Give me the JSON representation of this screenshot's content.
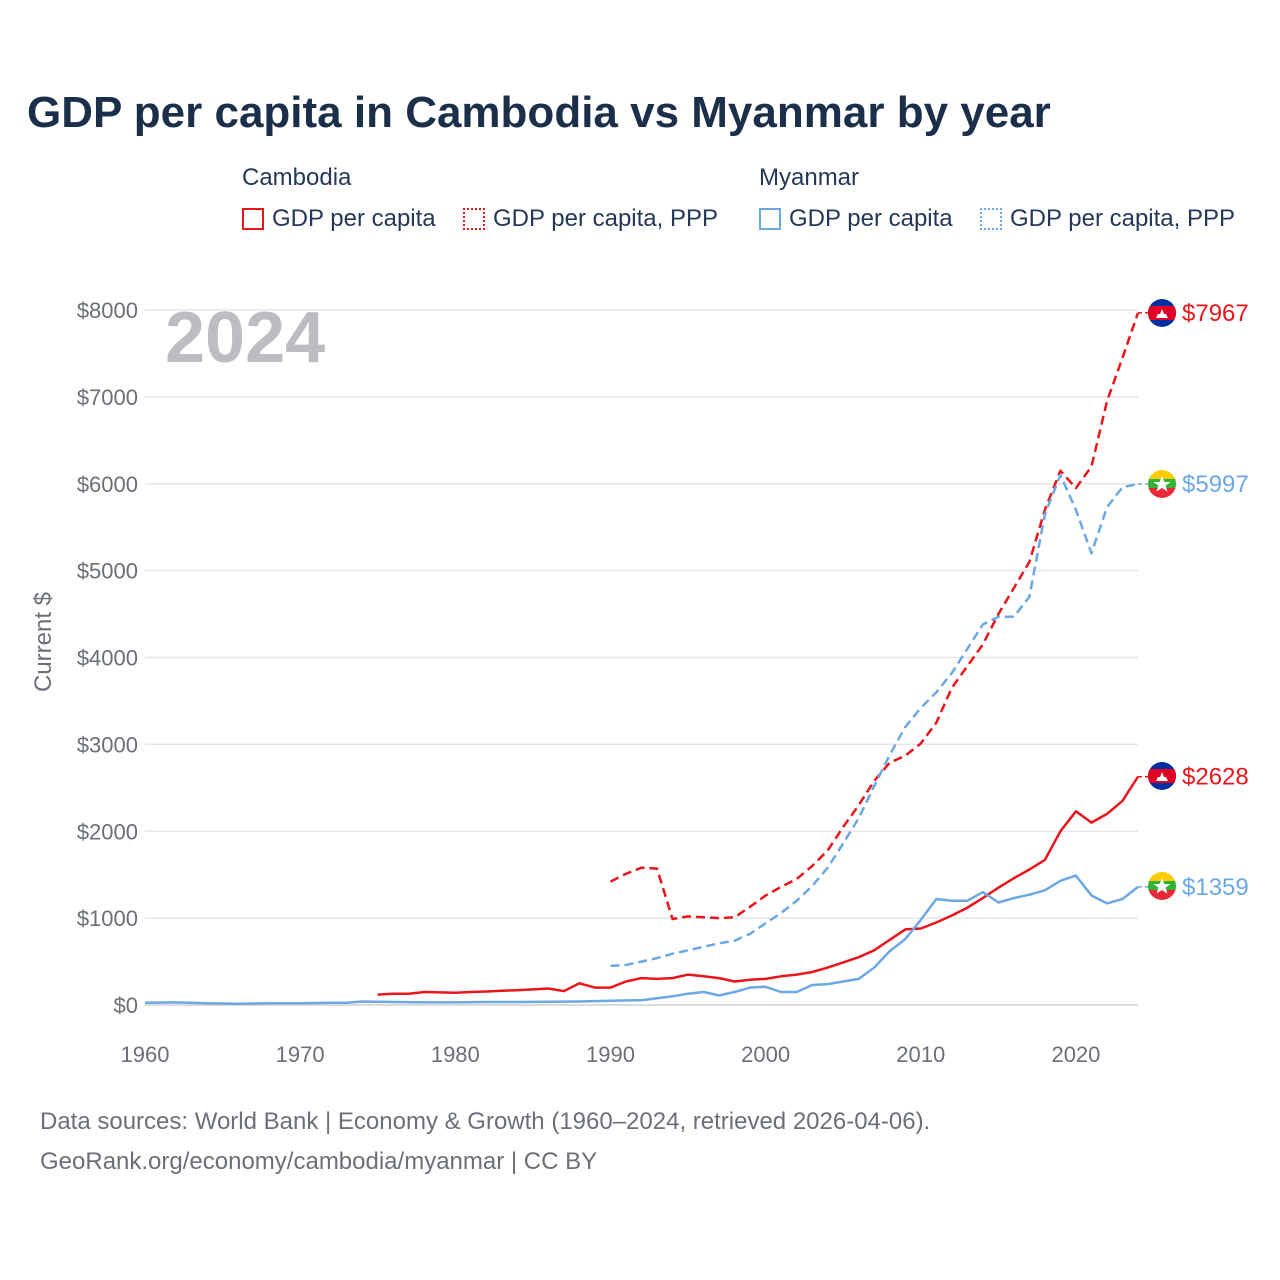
{
  "title": "GDP per capita in Cambodia vs Myanmar by year",
  "legend": {
    "cambodia_title": "Cambodia",
    "myanmar_title": "Myanmar",
    "items": [
      {
        "label": "GDP per capita"
      },
      {
        "label": "GDP per capita, PPP"
      },
      {
        "label": "GDP per capita"
      },
      {
        "label": "GDP per capita, PPP"
      }
    ]
  },
  "colors": {
    "cambodia": "#e8161b",
    "myanmar": "#6ba8e4",
    "grid": "#e6e6e6",
    "axis_text": "#6b6f78",
    "title": "#1b2f4b"
  },
  "footer": {
    "line1": "Data sources: World Bank | Economy & Growth (1960–2024, retrieved 2026-04-06).",
    "line2": "GeoRank.org/economy/cambodia/myanmar | CC BY"
  },
  "chart_data": {
    "type": "line",
    "year_label": "2024",
    "ylabel": "Current $",
    "xlim": [
      1960,
      2024
    ],
    "ylim": [
      0,
      8000
    ],
    "x_ticks": [
      "1960",
      "1970",
      "1980",
      "1990",
      "2000",
      "2010",
      "2020"
    ],
    "y_ticks": [
      "$0",
      "$1000",
      "$2000",
      "$3000",
      "$4000",
      "$5000",
      "$6000",
      "$7000",
      "$8000"
    ],
    "series": [
      {
        "name": "Cambodia GDP per capita",
        "country": "cambodia",
        "style": "solid",
        "end_label": "$2628",
        "points": [
          [
            1975,
            120
          ],
          [
            1976,
            130
          ],
          [
            1977,
            130
          ],
          [
            1978,
            150
          ],
          [
            1979,
            145
          ],
          [
            1980,
            140
          ],
          [
            1981,
            150
          ],
          [
            1982,
            155
          ],
          [
            1983,
            165
          ],
          [
            1984,
            170
          ],
          [
            1985,
            180
          ],
          [
            1986,
            190
          ],
          [
            1987,
            160
          ],
          [
            1988,
            250
          ],
          [
            1989,
            200
          ],
          [
            1990,
            200
          ],
          [
            1991,
            270
          ],
          [
            1992,
            310
          ],
          [
            1993,
            300
          ],
          [
            1994,
            310
          ],
          [
            1995,
            350
          ],
          [
            1996,
            330
          ],
          [
            1997,
            310
          ],
          [
            1998,
            270
          ],
          [
            1999,
            290
          ],
          [
            2000,
            300
          ],
          [
            2001,
            330
          ],
          [
            2002,
            350
          ],
          [
            2003,
            380
          ],
          [
            2004,
            430
          ],
          [
            2005,
            490
          ],
          [
            2006,
            550
          ],
          [
            2007,
            630
          ],
          [
            2008,
            750
          ],
          [
            2009,
            870
          ],
          [
            2010,
            880
          ],
          [
            2011,
            950
          ],
          [
            2012,
            1030
          ],
          [
            2013,
            1120
          ],
          [
            2014,
            1230
          ],
          [
            2015,
            1350
          ],
          [
            2016,
            1460
          ],
          [
            2017,
            1560
          ],
          [
            2018,
            1670
          ],
          [
            2019,
            2000
          ],
          [
            2020,
            2230
          ],
          [
            2021,
            2100
          ],
          [
            2022,
            2200
          ],
          [
            2023,
            2350
          ],
          [
            2024,
            2628
          ]
        ]
      },
      {
        "name": "Cambodia GDP per capita, PPP",
        "country": "cambodia",
        "style": "dashed",
        "end_label": "$7967",
        "points": [
          [
            1990,
            1420
          ],
          [
            1991,
            1510
          ],
          [
            1992,
            1580
          ],
          [
            1993,
            1570
          ],
          [
            1994,
            990
          ],
          [
            1995,
            1020
          ],
          [
            1996,
            1010
          ],
          [
            1997,
            1000
          ],
          [
            1998,
            1010
          ],
          [
            1999,
            1130
          ],
          [
            2000,
            1260
          ],
          [
            2001,
            1360
          ],
          [
            2002,
            1450
          ],
          [
            2003,
            1600
          ],
          [
            2004,
            1780
          ],
          [
            2005,
            2050
          ],
          [
            2006,
            2300
          ],
          [
            2007,
            2580
          ],
          [
            2008,
            2790
          ],
          [
            2009,
            2870
          ],
          [
            2010,
            3010
          ],
          [
            2011,
            3250
          ],
          [
            2012,
            3650
          ],
          [
            2013,
            3900
          ],
          [
            2014,
            4150
          ],
          [
            2015,
            4500
          ],
          [
            2016,
            4800
          ],
          [
            2017,
            5100
          ],
          [
            2018,
            5700
          ],
          [
            2019,
            6150
          ],
          [
            2020,
            5950
          ],
          [
            2021,
            6200
          ],
          [
            2022,
            6950
          ],
          [
            2023,
            7450
          ],
          [
            2024,
            7967
          ]
        ]
      },
      {
        "name": "Myanmar GDP per capita",
        "country": "myanmar",
        "style": "solid",
        "end_label": "$1359",
        "points": [
          [
            1960,
            25
          ],
          [
            1962,
            30
          ],
          [
            1964,
            20
          ],
          [
            1966,
            15
          ],
          [
            1968,
            20
          ],
          [
            1970,
            20
          ],
          [
            1972,
            25
          ],
          [
            1973,
            25
          ],
          [
            1974,
            40
          ],
          [
            1976,
            35
          ],
          [
            1978,
            30
          ],
          [
            1980,
            30
          ],
          [
            1982,
            35
          ],
          [
            1984,
            35
          ],
          [
            1986,
            38
          ],
          [
            1988,
            40
          ],
          [
            1990,
            50
          ],
          [
            1992,
            55
          ],
          [
            1994,
            100
          ],
          [
            1995,
            130
          ],
          [
            1996,
            150
          ],
          [
            1997,
            110
          ],
          [
            1998,
            150
          ],
          [
            1999,
            200
          ],
          [
            2000,
            210
          ],
          [
            2001,
            150
          ],
          [
            2002,
            150
          ],
          [
            2003,
            230
          ],
          [
            2004,
            240
          ],
          [
            2005,
            270
          ],
          [
            2006,
            300
          ],
          [
            2007,
            430
          ],
          [
            2008,
            620
          ],
          [
            2009,
            760
          ],
          [
            2010,
            980
          ],
          [
            2011,
            1220
          ],
          [
            2012,
            1200
          ],
          [
            2013,
            1200
          ],
          [
            2014,
            1300
          ],
          [
            2015,
            1180
          ],
          [
            2016,
            1230
          ],
          [
            2017,
            1270
          ],
          [
            2018,
            1320
          ],
          [
            2019,
            1430
          ],
          [
            2020,
            1490
          ],
          [
            2021,
            1260
          ],
          [
            2022,
            1170
          ],
          [
            2023,
            1220
          ],
          [
            2024,
            1359
          ]
        ]
      },
      {
        "name": "Myanmar GDP per capita, PPP",
        "country": "myanmar",
        "style": "dashed",
        "end_label": "$5997",
        "points": [
          [
            1990,
            450
          ],
          [
            1991,
            460
          ],
          [
            1992,
            500
          ],
          [
            1993,
            540
          ],
          [
            1994,
            590
          ],
          [
            1995,
            630
          ],
          [
            1996,
            670
          ],
          [
            1997,
            710
          ],
          [
            1998,
            740
          ],
          [
            1999,
            820
          ],
          [
            2000,
            940
          ],
          [
            2001,
            1060
          ],
          [
            2002,
            1200
          ],
          [
            2003,
            1370
          ],
          [
            2004,
            1580
          ],
          [
            2005,
            1860
          ],
          [
            2006,
            2150
          ],
          [
            2007,
            2520
          ],
          [
            2008,
            2880
          ],
          [
            2009,
            3200
          ],
          [
            2010,
            3420
          ],
          [
            2011,
            3600
          ],
          [
            2012,
            3820
          ],
          [
            2013,
            4100
          ],
          [
            2014,
            4380
          ],
          [
            2015,
            4470
          ],
          [
            2016,
            4470
          ],
          [
            2017,
            4700
          ],
          [
            2018,
            5650
          ],
          [
            2019,
            6100
          ],
          [
            2020,
            5700
          ],
          [
            2021,
            5200
          ],
          [
            2022,
            5730
          ],
          [
            2023,
            5960
          ],
          [
            2024,
            5997
          ]
        ]
      }
    ]
  }
}
